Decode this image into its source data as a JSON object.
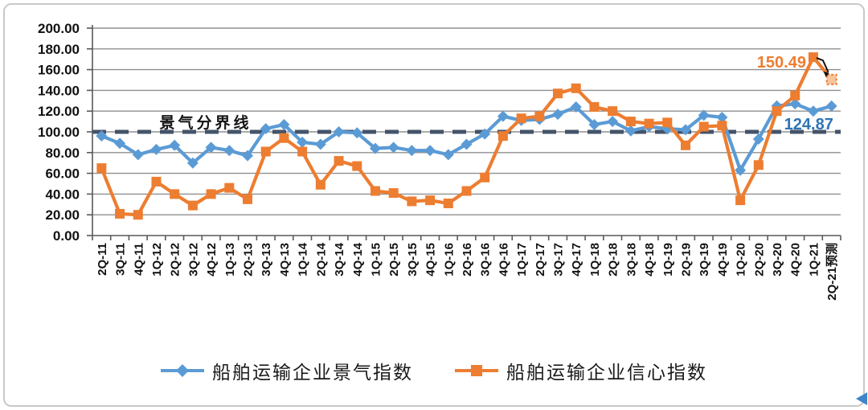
{
  "chart_data": {
    "type": "line",
    "title": "",
    "categories": [
      "2Q-11",
      "3Q-11",
      "4Q-11",
      "1Q-12",
      "2Q-12",
      "3Q-12",
      "4Q-12",
      "1Q-13",
      "2Q-13",
      "3Q-13",
      "4Q-13",
      "1Q-14",
      "2Q-14",
      "3Q-14",
      "4Q-14",
      "1Q-15",
      "2Q-15",
      "3Q-15",
      "4Q-15",
      "1Q-16",
      "2Q-16",
      "3Q-16",
      "4Q-16",
      "1Q-17",
      "2Q-17",
      "3Q-17",
      "4Q-17",
      "1Q-18",
      "2Q-18",
      "3Q-18",
      "4Q-18",
      "1Q-19",
      "2Q-19",
      "3Q-19",
      "4Q-19",
      "1Q-20",
      "2Q-20",
      "3Q-20",
      "4Q-20",
      "1Q-21",
      "2Q-21预测"
    ],
    "series": [
      {
        "name": "船舶运输企业景气指数",
        "color": "#5B9BD5",
        "marker": "diamond",
        "last_point_forecast": false,
        "values": [
          96,
          89,
          78,
          83,
          87,
          70,
          85,
          82,
          77,
          103,
          107,
          90,
          88,
          100,
          99,
          84,
          85,
          82,
          82,
          78,
          88,
          98,
          115,
          111,
          112,
          117,
          124,
          107,
          110,
          101,
          105,
          103,
          102,
          116,
          114,
          63,
          93,
          125,
          127,
          120,
          124.87
        ]
      },
      {
        "name": "船舶运输企业信心指数",
        "color": "#ED7D31",
        "marker": "square",
        "last_point_forecast": true,
        "values": [
          65,
          21,
          20,
          52,
          40,
          29,
          40,
          46,
          35,
          81,
          94,
          81,
          49,
          72,
          67,
          43,
          41,
          33,
          34,
          31,
          43,
          56,
          96,
          113,
          115,
          137,
          142,
          124,
          120,
          110,
          108,
          109,
          87,
          105,
          106,
          34,
          68,
          120,
          135,
          172,
          150.49
        ]
      }
    ],
    "ylim": [
      0,
      200
    ],
    "ytick_step": 20,
    "ytick_format": "0.00",
    "grid": true,
    "legend_position": "bottom",
    "x_labels_rotation": -90,
    "reference_line": {
      "value": 100,
      "label": "景气分界线",
      "color": "#44546A",
      "style": "dashed"
    },
    "annotations": [
      {
        "text": "150.49",
        "value": 150.49,
        "category": "2Q-21预测",
        "series": 1,
        "color": "#ED7D31",
        "leader_line": true
      },
      {
        "text": "124.87",
        "value": 124.87,
        "category": "2Q-21预测",
        "series": 0,
        "color": "#2E75B6",
        "leader_line": false
      }
    ],
    "colors": {
      "grid": "#8F8F8F",
      "axis": "#595959",
      "text": "#111111"
    }
  },
  "decor": {
    "corner_arrow_color": "#3D85C8"
  }
}
